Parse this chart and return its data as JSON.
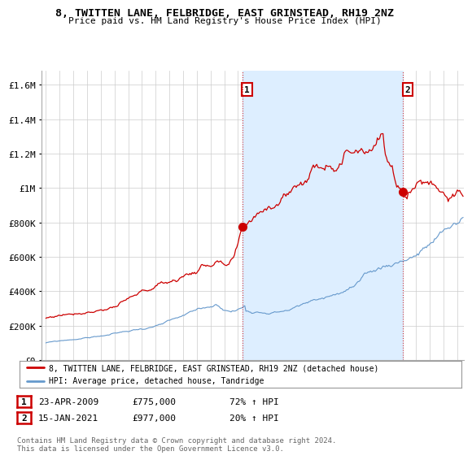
{
  "title": "8, TWITTEN LANE, FELBRIDGE, EAST GRINSTEAD, RH19 2NZ",
  "subtitle": "Price paid vs. HM Land Registry's House Price Index (HPI)",
  "ylabel_ticks": [
    "£0",
    "£200K",
    "£400K",
    "£600K",
    "£800K",
    "£1M",
    "£1.2M",
    "£1.4M",
    "£1.6M"
  ],
  "ytick_values": [
    0,
    200000,
    400000,
    600000,
    800000,
    1000000,
    1200000,
    1400000,
    1600000
  ],
  "ylim": [
    0,
    1680000
  ],
  "xlim_start": 1994.7,
  "xlim_end": 2025.5,
  "marker1_x": 2009.31,
  "marker1_y": 775000,
  "marker2_x": 2021.04,
  "marker2_y": 977000,
  "legend_line1": "8, TWITTEN LANE, FELBRIDGE, EAST GRINSTEAD, RH19 2NZ (detached house)",
  "legend_line2": "HPI: Average price, detached house, Tandridge",
  "annotation1": [
    "1",
    "23-APR-2009",
    "£775,000",
    "72% ↑ HPI"
  ],
  "annotation2": [
    "2",
    "15-JAN-2021",
    "£977,000",
    "20% ↑ HPI"
  ],
  "footer": "Contains HM Land Registry data © Crown copyright and database right 2024.\nThis data is licensed under the Open Government Licence v3.0.",
  "line1_color": "#cc0000",
  "line2_color": "#6699cc",
  "fill_color": "#ddeeff",
  "background_color": "#ffffff",
  "grid_color": "#cccccc"
}
